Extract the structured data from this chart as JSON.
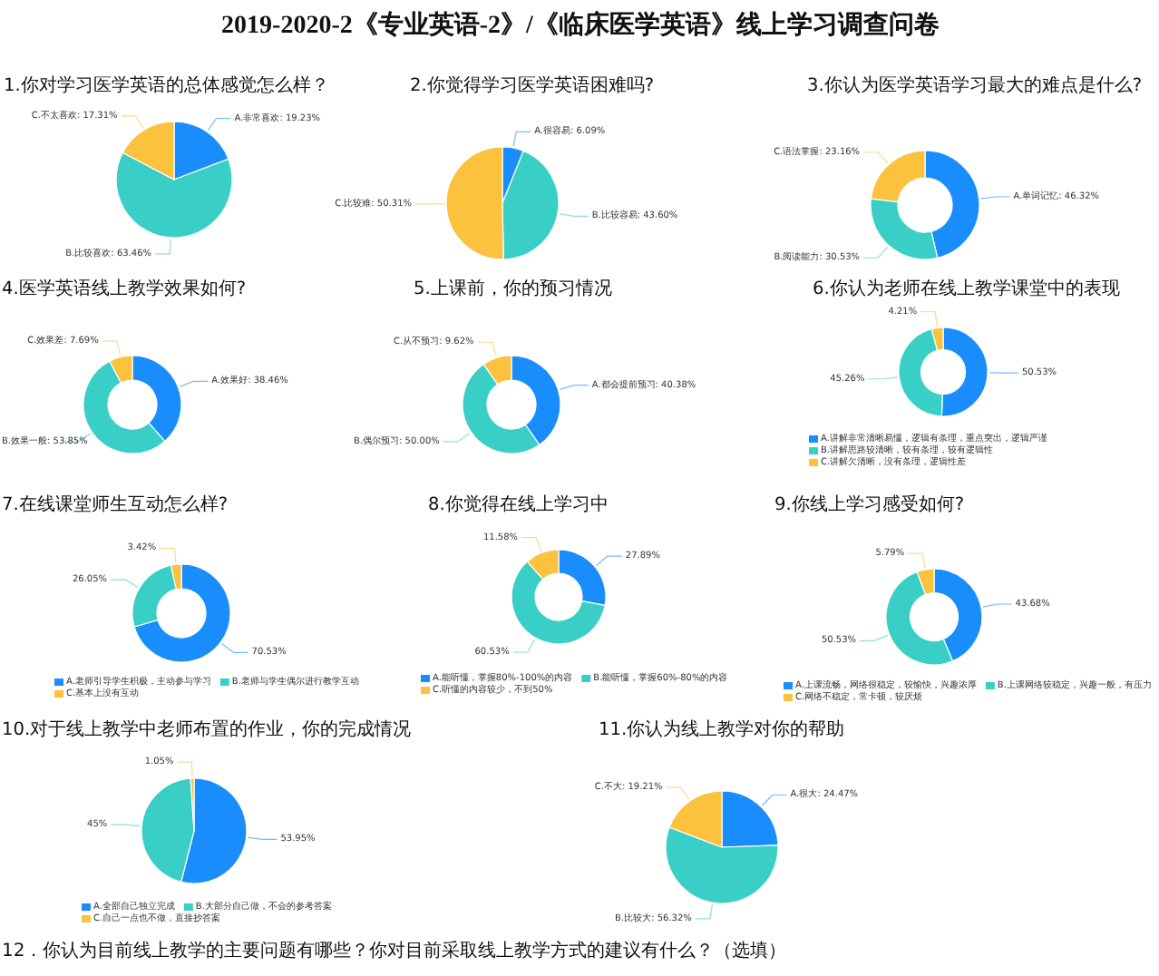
{
  "chart_data": [
    {
      "type": "other",
      "title": "2019-2020-2《专业英语-2》/《临床医学英语》线上学习调查问卷"
    },
    {
      "type": "pie",
      "title": "1.你对学习医学英语的总体感觉怎么样？",
      "categories": [
        "A.非常喜欢",
        "B.比较喜欢",
        "C.不太喜欢"
      ],
      "values": [
        19.23,
        63.46,
        17.31
      ],
      "value_labels": [
        "19.23%",
        "63.46%",
        "17.31%"
      ],
      "colors": [
        "#1a8dfd",
        "#39cfc7",
        "#fcc23e"
      ]
    },
    {
      "type": "pie",
      "title": "2.你觉得学习医学英语困难吗?",
      "categories": [
        "A.很容易",
        "B.比较容易",
        "C.比较难"
      ],
      "values": [
        6.09,
        43.6,
        50.31
      ],
      "value_labels": [
        "6.09%",
        "43.60%",
        "50.31%"
      ],
      "colors": [
        "#1a8dfd",
        "#39cfc7",
        "#fcc23e"
      ]
    },
    {
      "type": "donut",
      "title": "3.你认为医学英语学习最大的难点是什么?",
      "categories": [
        "A.单词记忆",
        "B.阅读能力",
        "C.语法掌握"
      ],
      "values": [
        46.32,
        30.53,
        23.16
      ],
      "value_labels": [
        "46.32%",
        "30.53%",
        "23.16%"
      ],
      "colors": [
        "#1a8dfd",
        "#39cfc7",
        "#fcc23e"
      ]
    },
    {
      "type": "donut",
      "title": "4.医学英语线上教学效果如何?",
      "categories": [
        "A.效果好",
        "B.效果一般",
        "C.效果差"
      ],
      "values": [
        38.46,
        53.85,
        7.69
      ],
      "value_labels": [
        "38.46%",
        "53.85%",
        "7.69%"
      ],
      "colors": [
        "#1a8dfd",
        "#39cfc7",
        "#fcc23e"
      ]
    },
    {
      "type": "donut",
      "title": "5.上课前，你的预习情况",
      "categories": [
        "A.都会提前预习",
        "B.偶尔预习",
        "C.从不预习"
      ],
      "values": [
        40.38,
        50.0,
        9.62
      ],
      "value_labels": [
        "40.38%",
        "50.00%",
        "9.62%"
      ],
      "colors": [
        "#1a8dfd",
        "#39cfc7",
        "#fcc23e"
      ]
    },
    {
      "type": "donut",
      "title": "6.你认为老师在线上教学课堂中的表现",
      "categories": [
        "A.讲解非常清晰易懂，逻辑有条理，重点突出，逻辑严谨",
        "B.讲解思路较清晰，较有条理，较有逻辑性",
        "C.讲解欠清晰，没有条理，逻辑性差"
      ],
      "values": [
        50.53,
        45.26,
        4.21
      ],
      "value_labels": [
        "50.53%",
        "45.26%",
        "4.21%"
      ],
      "colors": [
        "#1a8dfd",
        "#39cfc7",
        "#fcc23e"
      ],
      "legend": "bottom"
    },
    {
      "type": "donut",
      "title": "7.在线课堂师生互动怎么样?",
      "categories": [
        "A.老师引导学生积极，主动参与学习",
        "B.老师与学生偶尔进行教学互动",
        "C.基本上没有互动"
      ],
      "values": [
        70.53,
        26.05,
        3.42
      ],
      "value_labels": [
        "70.53%",
        "26.05%",
        "3.42%"
      ],
      "colors": [
        "#1a8dfd",
        "#39cfc7",
        "#fcc23e"
      ],
      "legend": "bottom"
    },
    {
      "type": "donut",
      "title": "8.你觉得在线上学习中",
      "categories": [
        "A.能听懂，掌握80%-100%的内容",
        "B.能听懂，掌握60%-80%的内容",
        "C.听懂的内容较少，不到50%"
      ],
      "values": [
        27.89,
        60.53,
        11.58
      ],
      "value_labels": [
        "27.89%",
        "60.53%",
        "11.58%"
      ],
      "colors": [
        "#1a8dfd",
        "#39cfc7",
        "#fcc23e"
      ],
      "legend": "bottom"
    },
    {
      "type": "donut",
      "title": "9.你线上学习感受如何?",
      "categories": [
        "A.上课流畅，网络很稳定，较愉快，兴趣浓厚",
        "B.上课网络较稳定，兴趣一般，有压力",
        "C.网络不稳定，常卡顿，较厌烦"
      ],
      "values": [
        43.68,
        50.53,
        5.79
      ],
      "value_labels": [
        "43.68%",
        "50.53%",
        "5.79%"
      ],
      "colors": [
        "#1a8dfd",
        "#39cfc7",
        "#fcc23e"
      ],
      "legend": "bottom"
    },
    {
      "type": "pie",
      "title": "10.对于线上教学中老师布置的作业，你的完成情况",
      "categories": [
        "A.全部自己独立完成",
        "B.大部分自己做，不会的参考答案",
        "C.自己一点也不做，直接抄答案"
      ],
      "values": [
        53.95,
        45,
        1.05
      ],
      "value_labels": [
        "53.95%",
        "45%",
        "1.05%"
      ],
      "colors": [
        "#1a8dfd",
        "#39cfc7",
        "#fcc23e"
      ],
      "legend": "bottom"
    },
    {
      "type": "pie",
      "title": "11.你认为线上教学对你的帮助",
      "categories": [
        "A.很大",
        "B.比较大",
        "C.不大"
      ],
      "values": [
        24.47,
        56.32,
        19.21
      ],
      "value_labels": [
        "24.47%",
        "56.32%",
        "19.21%"
      ],
      "colors": [
        "#1a8dfd",
        "#39cfc7",
        "#fcc23e"
      ]
    },
    {
      "type": "other",
      "title": "12．你认为目前线上教学的主要问题有哪些？你对目前采取线上教学方式的建议有什么？（选填）"
    }
  ]
}
